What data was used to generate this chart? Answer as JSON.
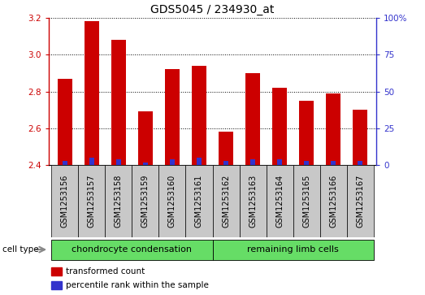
{
  "title": "GDS5045 / 234930_at",
  "samples": [
    "GSM1253156",
    "GSM1253157",
    "GSM1253158",
    "GSM1253159",
    "GSM1253160",
    "GSM1253161",
    "GSM1253162",
    "GSM1253163",
    "GSM1253164",
    "GSM1253165",
    "GSM1253166",
    "GSM1253167"
  ],
  "transformed_count": [
    2.87,
    3.18,
    3.08,
    2.69,
    2.92,
    2.94,
    2.58,
    2.9,
    2.82,
    2.75,
    2.79,
    2.7
  ],
  "percentile_rank": [
    3,
    5,
    4,
    2,
    4,
    5,
    3,
    4,
    4,
    3,
    3,
    3
  ],
  "ylim_left": [
    2.4,
    3.2
  ],
  "ylim_right": [
    0,
    100
  ],
  "yticks_left": [
    2.4,
    2.6,
    2.8,
    3.0,
    3.2
  ],
  "yticks_right": [
    0,
    25,
    50,
    75,
    100
  ],
  "ytick_labels_right": [
    "0",
    "25",
    "50",
    "75",
    "100%"
  ],
  "bar_color_red": "#cc0000",
  "bar_color_blue": "#3333cc",
  "bar_width": 0.55,
  "blue_bar_width": 0.18,
  "group1_label": "chondrocyte condensation",
  "group2_label": "remaining limb cells",
  "cell_type_label": "cell type",
  "legend_red_label": "transformed count",
  "legend_blue_label": "percentile rank within the sample",
  "bg_color_plot": "#ffffff",
  "bg_color_xtick": "#c8c8c8",
  "bg_color_group": "#66dd66",
  "title_fontsize": 10,
  "tick_fontsize": 7.5,
  "label_fontsize": 8
}
